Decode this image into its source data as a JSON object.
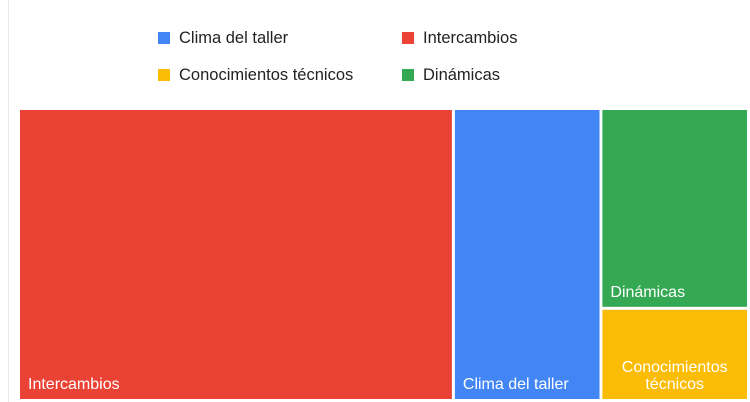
{
  "chart_data": {
    "type": "treemap",
    "title": "",
    "legend_position": "top",
    "items": [
      {
        "label": "Intercambios",
        "color": "#EA4335",
        "value": 56
      },
      {
        "label": "Clima del taller",
        "color": "#4285F4",
        "value": 19
      },
      {
        "label": "Dinámicas",
        "color": "#34A853",
        "value": 13
      },
      {
        "label": "Conocimientos técnicos",
        "color": "#FBBC04",
        "value": 6
      }
    ],
    "legend": [
      {
        "label": "Clima del taller",
        "color": "#4285F4"
      },
      {
        "label": "Intercambios",
        "color": "#EA4335"
      },
      {
        "label": "Conocimientos técnicos",
        "color": "#FBBC04"
      },
      {
        "label": "Dinámicas",
        "color": "#34A853"
      }
    ]
  }
}
